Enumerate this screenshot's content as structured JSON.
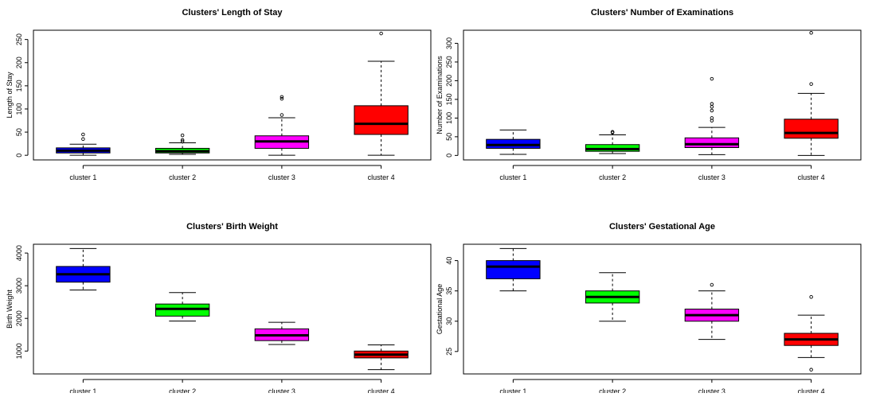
{
  "chart_data": [
    {
      "type": "boxplot",
      "title": "Clusters' Length of Stay",
      "ylabel": "Length of Stay",
      "categories": [
        "cluster 1",
        "cluster 2",
        "cluster 3",
        "cluster 4"
      ],
      "yticks": [
        0,
        50,
        100,
        150,
        200,
        250
      ],
      "ylim": [
        -10,
        270
      ],
      "colors": [
        "#0000FF",
        "#00FF00",
        "#FF00FF",
        "#FF0000"
      ],
      "boxes": [
        {
          "whisker_low": 0,
          "q1": 5,
          "median": 10,
          "q3": 16,
          "whisker_high": 24,
          "outliers": [
            35,
            45
          ]
        },
        {
          "whisker_low": 2,
          "q1": 5,
          "median": 9,
          "q3": 15,
          "whisker_high": 27,
          "outliers": [
            30,
            33,
            43
          ]
        },
        {
          "whisker_low": 0,
          "q1": 15,
          "median": 30,
          "q3": 42,
          "whisker_high": 81,
          "outliers": [
            87,
            122,
            126
          ]
        },
        {
          "whisker_low": 0,
          "q1": 45,
          "median": 68,
          "q3": 107,
          "whisker_high": 203,
          "outliers": [
            263
          ]
        }
      ]
    },
    {
      "type": "boxplot",
      "title": "Clusters' Number of Examinations",
      "ylabel": "Number of Examinations",
      "categories": [
        "cluster 1",
        "cluster 2",
        "cluster 3",
        "cluster 4"
      ],
      "yticks": [
        0,
        50,
        100,
        150,
        200,
        250,
        300
      ],
      "ylim": [
        -12,
        335
      ],
      "colors": [
        "#0000FF",
        "#00FF00",
        "#FF00FF",
        "#FF0000"
      ],
      "boxes": [
        {
          "whisker_low": 3,
          "q1": 19,
          "median": 28,
          "q3": 43,
          "whisker_high": 68,
          "outliers": []
        },
        {
          "whisker_low": 5,
          "q1": 11,
          "median": 17,
          "q3": 29,
          "whisker_high": 55,
          "outliers": [
            61,
            63
          ]
        },
        {
          "whisker_low": 2,
          "q1": 21,
          "median": 30,
          "q3": 47,
          "whisker_high": 75,
          "outliers": [
            93,
            100,
            120,
            130,
            138,
            205
          ]
        },
        {
          "whisker_low": 0,
          "q1": 46,
          "median": 60,
          "q3": 97,
          "whisker_high": 166,
          "outliers": [
            191,
            328
          ]
        }
      ]
    },
    {
      "type": "boxplot",
      "title": "Clusters' Birth Weight",
      "ylabel": "Birth Weight",
      "categories": [
        "cluster 1",
        "cluster 2",
        "cluster 3",
        "cluster 4"
      ],
      "yticks": [
        1000,
        2000,
        3000,
        4000
      ],
      "ylim": [
        300,
        4270
      ],
      "colors": [
        "#0000FF",
        "#00FF00",
        "#FF00FF",
        "#FF0000"
      ],
      "boxes": [
        {
          "whisker_low": 2870,
          "q1": 3110,
          "median": 3350,
          "q3": 3590,
          "whisker_high": 4140,
          "outliers": []
        },
        {
          "whisker_low": 1920,
          "q1": 2070,
          "median": 2290,
          "q3": 2440,
          "whisker_high": 2790,
          "outliers": []
        },
        {
          "whisker_low": 1200,
          "q1": 1320,
          "median": 1480,
          "q3": 1680,
          "whisker_high": 1880,
          "outliers": []
        },
        {
          "whisker_low": 430,
          "q1": 790,
          "median": 890,
          "q3": 1000,
          "whisker_high": 1190,
          "outliers": []
        }
      ]
    },
    {
      "type": "boxplot",
      "title": "Clusters' Gestational Age",
      "ylabel": "Gestational Age",
      "categories": [
        "cluster 1",
        "cluster 2",
        "cluster 3",
        "cluster 4"
      ],
      "yticks": [
        25,
        30,
        35,
        40
      ],
      "ylim": [
        21.3,
        42.7
      ],
      "colors": [
        "#0000FF",
        "#00FF00",
        "#FF00FF",
        "#FF0000"
      ],
      "boxes": [
        {
          "whisker_low": 35,
          "q1": 37,
          "median": 39,
          "q3": 40,
          "whisker_high": 42,
          "outliers": []
        },
        {
          "whisker_low": 30,
          "q1": 33,
          "median": 34,
          "q3": 35,
          "whisker_high": 38,
          "outliers": []
        },
        {
          "whisker_low": 27,
          "q1": 30,
          "median": 31,
          "q3": 32,
          "whisker_high": 35,
          "outliers": [
            36
          ]
        },
        {
          "whisker_low": 24,
          "q1": 26,
          "median": 27,
          "q3": 28,
          "whisker_high": 31,
          "outliers": [
            22,
            34
          ]
        }
      ]
    }
  ]
}
